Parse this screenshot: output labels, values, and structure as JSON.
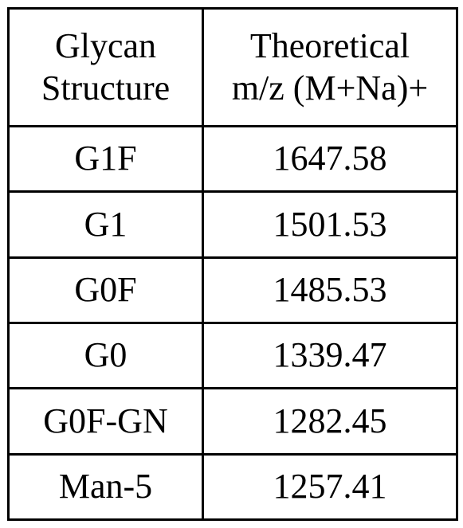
{
  "table": {
    "header": {
      "col1": [
        "Glycan",
        "Structure"
      ],
      "col2": [
        "Theoretical",
        "m/z (M+Na)+"
      ]
    },
    "rows": [
      {
        "structure": "G1F",
        "mz": "1647.58"
      },
      {
        "structure": "G1",
        "mz": "1501.53"
      },
      {
        "structure": "G0F",
        "mz": "1485.53"
      },
      {
        "structure": "G0",
        "mz": "1339.47"
      },
      {
        "structure": "G0F-GN",
        "mz": "1282.45"
      },
      {
        "structure": "Man-5",
        "mz": "1257.41"
      }
    ]
  }
}
